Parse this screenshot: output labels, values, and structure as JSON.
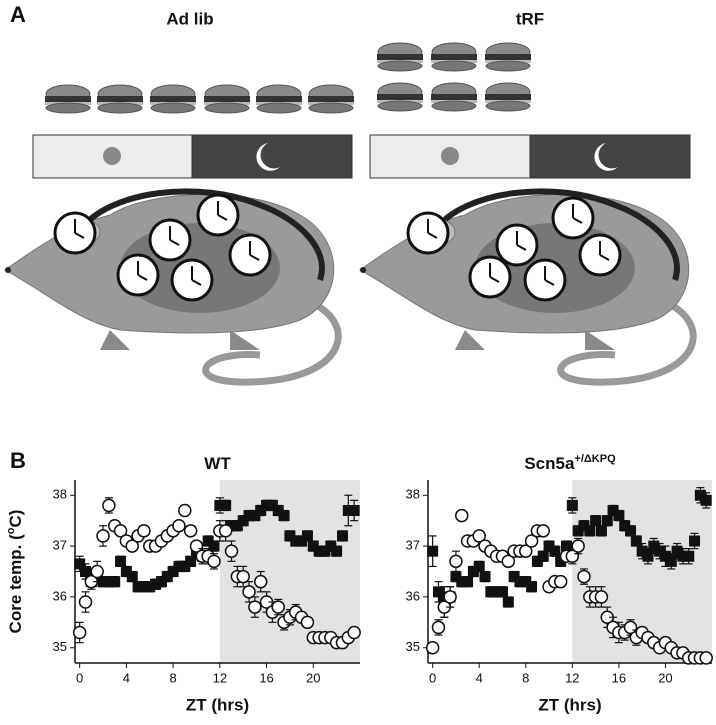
{
  "panel_a": {
    "label": "A",
    "groups": [
      {
        "title": "Ad lib"
      },
      {
        "title": "tRF"
      }
    ]
  },
  "panel_b_label": "B",
  "chart_data": [
    {
      "type": "scatter",
      "title": "WT",
      "xlabel": "ZT (hrs)",
      "ylabel": [
        "Core temp. (",
        "o",
        "C)"
      ],
      "xlim": [
        -0.4,
        24
      ],
      "ylim": [
        34.7,
        38.3
      ],
      "xticks": [
        0,
        4,
        8,
        12,
        16,
        20
      ],
      "yticks": [
        35,
        36,
        37,
        38
      ],
      "shaded_x": [
        12,
        24
      ],
      "shade_color": "#e3e3e3",
      "x": [
        0,
        0.5,
        1,
        1.5,
        2,
        2.5,
        3,
        3.5,
        4,
        4.5,
        5,
        5.5,
        6,
        6.5,
        7,
        7.5,
        8,
        8.5,
        9,
        9.5,
        10,
        10.5,
        11,
        11.5,
        12,
        12.5,
        13,
        13.5,
        14,
        14.5,
        15,
        15.5,
        16,
        16.5,
        17,
        17.5,
        18,
        18.5,
        19,
        19.5,
        20,
        20.5,
        21,
        21.5,
        22,
        22.5,
        23,
        23.5
      ],
      "series": [
        {
          "marker": "square",
          "color": "#111111",
          "values": [
            36.65,
            36.5,
            36.3,
            36.4,
            36.3,
            36.3,
            36.3,
            36.7,
            36.5,
            36.4,
            36.2,
            36.2,
            36.2,
            36.25,
            36.3,
            36.4,
            36.5,
            36.6,
            36.6,
            36.7,
            36.9,
            36.8,
            37.1,
            37.0,
            37.8,
            37.8,
            37.4,
            37.4,
            37.5,
            37.6,
            37.6,
            37.7,
            37.8,
            37.8,
            37.7,
            37.6,
            37.2,
            37.1,
            37.1,
            37.2,
            37.0,
            36.9,
            36.9,
            37.0,
            36.9,
            37.2,
            37.7,
            37.7
          ],
          "errors": [
            0.15,
            0.15,
            0.1,
            0.1,
            0.1,
            0.1,
            0.1,
            0.1,
            0.1,
            0.1,
            0.1,
            0.1,
            0.1,
            0.1,
            0.1,
            0.1,
            0.1,
            0.1,
            0.1,
            0.1,
            0.15,
            0.1,
            0.1,
            0.1,
            0.15,
            0.1,
            0.1,
            0.1,
            0.1,
            0.1,
            0.1,
            0.1,
            0.1,
            0.1,
            0.1,
            0.1,
            0.1,
            0.1,
            0.1,
            0.1,
            0.1,
            0.1,
            0.1,
            0.1,
            0.1,
            0.1,
            0.3,
            0.2
          ]
        },
        {
          "marker": "circle",
          "color": "#111111",
          "values": [
            35.3,
            35.9,
            36.3,
            36.5,
            37.2,
            37.8,
            37.4,
            37.3,
            37.1,
            37.0,
            37.2,
            37.3,
            37.0,
            37.0,
            37.1,
            37.2,
            37.3,
            37.4,
            37.7,
            37.3,
            37.0,
            36.8,
            36.8,
            36.7,
            37.3,
            37.3,
            36.9,
            36.4,
            36.4,
            36.1,
            35.8,
            36.3,
            35.9,
            35.7,
            35.8,
            35.5,
            35.6,
            35.7,
            35.6,
            35.5,
            35.2,
            35.2,
            35.2,
            35.2,
            35.1,
            35.1,
            35.2,
            35.3
          ],
          "errors": [
            0.2,
            0.2,
            0.15,
            0.2,
            0.2,
            0.15,
            0.1,
            0.1,
            0.1,
            0.1,
            0.1,
            0.1,
            0.1,
            0.1,
            0.1,
            0.1,
            0.1,
            0.1,
            0.1,
            0.1,
            0.1,
            0.15,
            0.15,
            0.15,
            0.2,
            0.2,
            0.2,
            0.2,
            0.2,
            0.2,
            0.2,
            0.2,
            0.2,
            0.2,
            0.15,
            0.15,
            0.15,
            0.15,
            0.1,
            0.1,
            0.1,
            0.1,
            0.1,
            0.1,
            0.1,
            0.1,
            0.1,
            0.1
          ]
        }
      ]
    },
    {
      "type": "scatter",
      "title": "Scn5a",
      "title_superscript": "+/ΔKPQ",
      "xlabel": "ZT (hrs)",
      "xlim": [
        -0.4,
        24
      ],
      "ylim": [
        34.7,
        38.3
      ],
      "xticks": [
        0,
        4,
        8,
        12,
        16,
        20
      ],
      "yticks": [
        35,
        36,
        37,
        38
      ],
      "shaded_x": [
        12,
        24
      ],
      "shade_color": "#e3e3e3",
      "x": [
        0,
        0.5,
        1,
        1.5,
        2,
        2.5,
        3,
        3.5,
        4,
        4.5,
        5,
        5.5,
        6,
        6.5,
        7,
        7.5,
        8,
        8.5,
        9,
        9.5,
        10,
        10.5,
        11,
        11.5,
        12,
        12.5,
        13,
        13.5,
        14,
        14.5,
        15,
        15.5,
        16,
        16.5,
        17,
        17.5,
        18,
        18.5,
        19,
        19.5,
        20,
        20.5,
        21,
        21.5,
        22,
        22.5,
        23,
        23.5
      ],
      "series": [
        {
          "marker": "square",
          "color": "#111111",
          "values": [
            36.9,
            36.1,
            35.9,
            36.0,
            36.4,
            36.3,
            36.3,
            36.5,
            36.6,
            36.4,
            36.1,
            36.1,
            36.1,
            35.9,
            36.4,
            36.3,
            36.3,
            36.2,
            36.7,
            36.8,
            37.0,
            36.9,
            36.7,
            37.0,
            37.8,
            37.3,
            37.4,
            37.3,
            37.5,
            37.3,
            37.5,
            37.7,
            37.6,
            37.4,
            37.3,
            37.1,
            36.9,
            36.8,
            37.0,
            36.9,
            36.8,
            36.7,
            36.9,
            36.8,
            36.8,
            37.1,
            38.0,
            37.9
          ],
          "errors": [
            0.3,
            0.2,
            0.3,
            0.2,
            0.1,
            0.1,
            0.1,
            0.1,
            0.1,
            0.1,
            0.1,
            0.1,
            0.1,
            0.1,
            0.1,
            0.1,
            0.1,
            0.1,
            0.1,
            0.1,
            0.1,
            0.1,
            0.1,
            0.1,
            0.15,
            0.1,
            0.1,
            0.1,
            0.1,
            0.1,
            0.1,
            0.1,
            0.1,
            0.1,
            0.1,
            0.1,
            0.15,
            0.15,
            0.15,
            0.15,
            0.2,
            0.15,
            0.15,
            0.15,
            0.15,
            0.15,
            0.15,
            0.15
          ]
        },
        {
          "marker": "circle",
          "color": "#111111",
          "values": [
            35.0,
            35.4,
            35.8,
            36.0,
            36.7,
            37.6,
            37.1,
            37.1,
            37.2,
            37.0,
            36.9,
            36.8,
            36.8,
            36.7,
            36.9,
            36.9,
            36.9,
            37.1,
            37.3,
            37.3,
            36.2,
            36.3,
            36.3,
            36.8,
            36.8,
            37.0,
            36.4,
            36.0,
            36.0,
            36.0,
            35.6,
            35.4,
            35.3,
            35.3,
            35.4,
            35.2,
            35.3,
            35.2,
            35.1,
            35.0,
            35.1,
            35.0,
            34.9,
            34.9,
            34.8,
            34.8,
            34.8,
            34.8
          ],
          "errors": [
            0.1,
            0.15,
            0.2,
            0.2,
            0.2,
            0.1,
            0.1,
            0.1,
            0.1,
            0.1,
            0.1,
            0.1,
            0.1,
            0.1,
            0.1,
            0.1,
            0.1,
            0.1,
            0.1,
            0.1,
            0.1,
            0.1,
            0.1,
            0.1,
            0.15,
            0.15,
            0.15,
            0.2,
            0.2,
            0.2,
            0.2,
            0.2,
            0.2,
            0.15,
            0.15,
            0.15,
            0.1,
            0.1,
            0.1,
            0.1,
            0.1,
            0.1,
            0.1,
            0.1,
            0.1,
            0.1,
            0.1,
            0.1
          ]
        }
      ]
    }
  ]
}
